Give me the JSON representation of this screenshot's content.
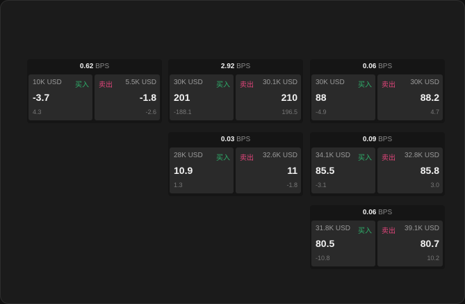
{
  "labels": {
    "unit": "BPS",
    "buy": "买入",
    "sell": "卖出"
  },
  "colors": {
    "buy": "#2eae6a",
    "sell": "#e0457a"
  },
  "cards": [
    {
      "bps": "0.62",
      "buy": {
        "size": "10K USD",
        "price": "-3.7",
        "delta": "4.3"
      },
      "sell": {
        "size": "5.5K USD",
        "price": "-1.8",
        "delta": "-2.6"
      }
    },
    {
      "bps": "2.92",
      "buy": {
        "size": "30K USD",
        "price": "201",
        "delta": "-188.1"
      },
      "sell": {
        "size": "30.1K USD",
        "price": "210",
        "delta": "196.5"
      }
    },
    {
      "bps": "0.06",
      "buy": {
        "size": "30K USD",
        "price": "88",
        "delta": "-4.9"
      },
      "sell": {
        "size": "30K USD",
        "price": "88.2",
        "delta": "4.7"
      }
    },
    {
      "bps": "0.03",
      "buy": {
        "size": "28K USD",
        "price": "10.9",
        "delta": "1.3"
      },
      "sell": {
        "size": "32.6K USD",
        "price": "11",
        "delta": "-1.8"
      }
    },
    {
      "bps": "0.09",
      "buy": {
        "size": "34.1K USD",
        "price": "85.5",
        "delta": "-3.1"
      },
      "sell": {
        "size": "32.8K USD",
        "price": "85.8",
        "delta": "3.0"
      }
    },
    {
      "bps": "0.06",
      "buy": {
        "size": "31.8K USD",
        "price": "80.5",
        "delta": "-10.8"
      },
      "sell": {
        "size": "39.1K USD",
        "price": "80.7",
        "delta": "10.2"
      }
    }
  ]
}
